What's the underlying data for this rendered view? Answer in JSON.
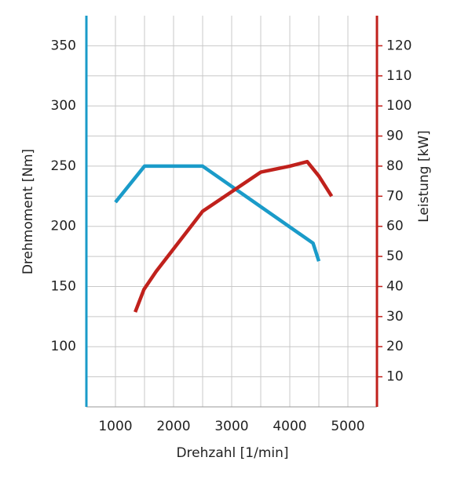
{
  "chart_data": {
    "type": "line",
    "x_label": "Drehzahl [1/min]",
    "y_label": "Drehmoment [Nm]",
    "y2_label": "Leistung [kW]",
    "xlim": [
      500,
      5500
    ],
    "xticks": [
      1000,
      2000,
      3000,
      4000,
      5000
    ],
    "ylim": [
      50,
      375
    ],
    "yticks": [
      100,
      150,
      200,
      250,
      300,
      350
    ],
    "y2lim": [
      0,
      130
    ],
    "y2ticks": [
      10,
      20,
      30,
      40,
      50,
      60,
      70,
      80,
      90,
      100,
      110,
      120
    ],
    "grid": true,
    "y_color": "#1a9bc9",
    "y2_color": "#c0211c",
    "series": [
      {
        "color": "#1a9bc9",
        "axis": "y",
        "x": [
          1000,
          1500,
          2500,
          4400,
          4500
        ],
        "values": [
          220,
          250,
          250,
          186,
          171
        ]
      },
      {
        "color": "#c0211c",
        "axis": "y2",
        "x": [
          1340,
          1490,
          1700,
          2500,
          3500,
          4000,
          4300,
          4500,
          4720
        ],
        "values": [
          31.5,
          39,
          45,
          65,
          78,
          80,
          81.5,
          76.7,
          70
        ]
      }
    ]
  }
}
